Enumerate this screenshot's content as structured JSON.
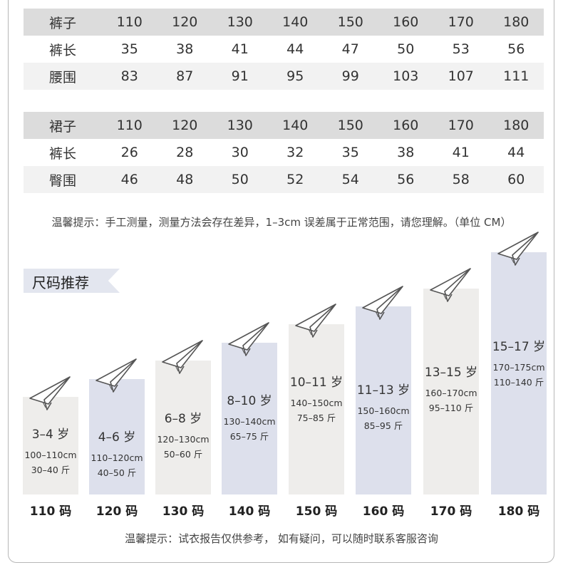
{
  "pants_table": {
    "header": [
      "裤子",
      "110",
      "120",
      "130",
      "140",
      "150",
      "160",
      "170",
      "180"
    ],
    "rows": [
      [
        "裤长",
        "35",
        "38",
        "41",
        "44",
        "47",
        "50",
        "53",
        "56"
      ],
      [
        "腰围",
        "83",
        "87",
        "91",
        "95",
        "99",
        "103",
        "107",
        "111"
      ]
    ]
  },
  "skirt_table": {
    "header": [
      "裙子",
      "110",
      "120",
      "130",
      "140",
      "150",
      "160",
      "170",
      "180"
    ],
    "rows": [
      [
        "裤长",
        "26",
        "28",
        "30",
        "32",
        "35",
        "38",
        "41",
        "44"
      ],
      [
        "臀围",
        "46",
        "48",
        "50",
        "52",
        "54",
        "56",
        "58",
        "60"
      ]
    ]
  },
  "tips": {
    "top": "温馨提示：手工测量，测量方法会存在差异，1–3cm 误差属于正常范围，请您理解。（单位 CM）",
    "bottom": "温馨提示：试衣报告仅供参考， 如有疑问，可以随时联系客服咨询"
  },
  "recommend": {
    "title": "尺码推荐",
    "items": [
      {
        "age": "3–4 岁",
        "height": "100–110cm",
        "weight": "30–40 斤",
        "code": "110 码",
        "level": 0.2727
      },
      {
        "age": "4–6 岁",
        "height": "110–120cm",
        "weight": "40–50 斤",
        "code": "120 码",
        "level": 0.3636
      },
      {
        "age": "6–8 岁",
        "height": "120–130cm",
        "weight": "50–60 斤",
        "code": "130 码",
        "level": 0.4545
      },
      {
        "age": "8–10 岁",
        "height": "130–140cm",
        "weight": "65–75 斤",
        "code": "140 码",
        "level": 0.5455
      },
      {
        "age": "10–11 岁",
        "height": "140–150cm",
        "weight": "75–85 斤",
        "code": "150 码",
        "level": 0.6364
      },
      {
        "age": "11–13 岁",
        "height": "150–160cm",
        "weight": "85–95 斤",
        "code": "160 码",
        "level": 0.7273
      },
      {
        "age": "13–15 岁",
        "height": "160–170cm",
        "weight": "95–110 斤",
        "code": "170 码",
        "level": 0.8182
      },
      {
        "age": "15–17 岁",
        "height": "170–175cm",
        "weight": "110–140 斤",
        "code": "180 码",
        "level": 1.0
      }
    ]
  },
  "colors": {
    "bar_warm": "#eeedeb",
    "bar_cool": "#dde0ec",
    "row_gray": "#dcdcdc",
    "row_light": "#f2f2f2"
  },
  "icon": "paper-plane-icon"
}
